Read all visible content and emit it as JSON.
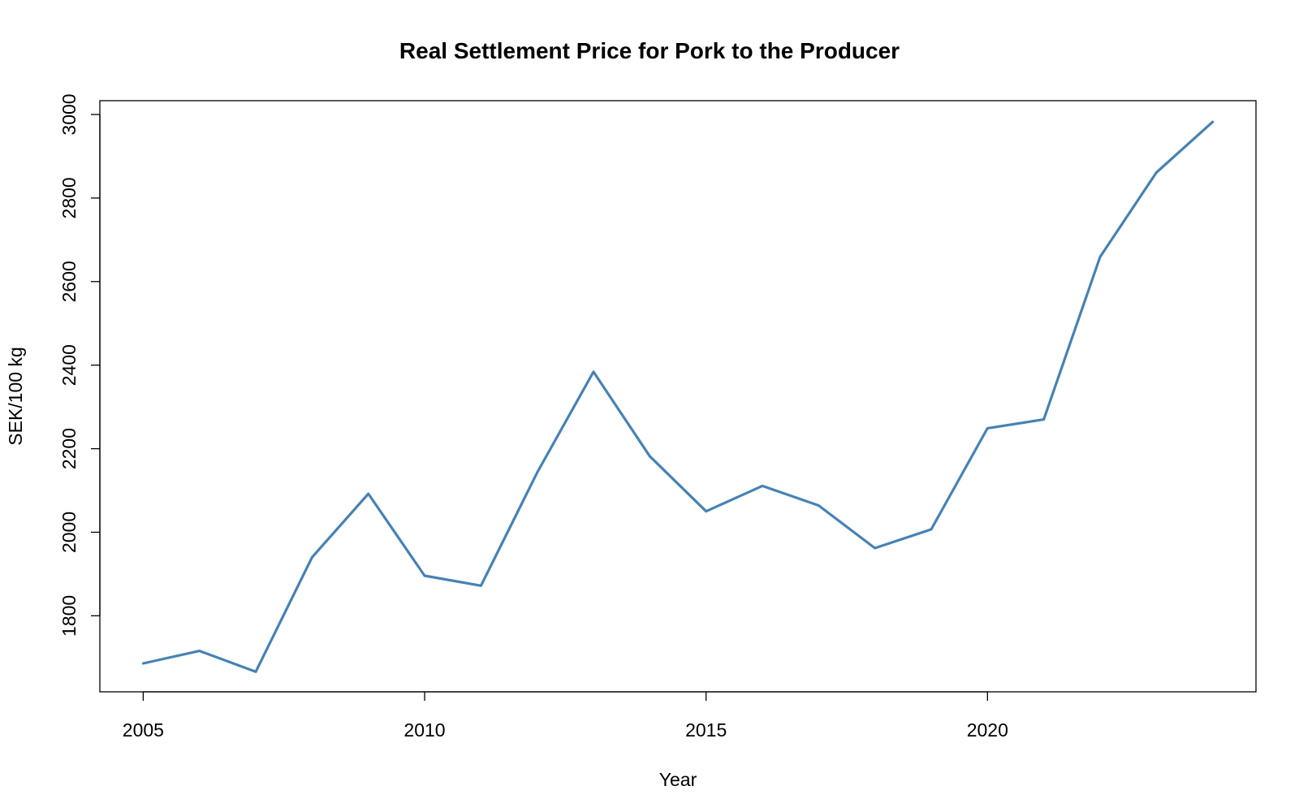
{
  "chart_data": {
    "type": "line",
    "title": "Real Settlement Price for Pork to the Producer",
    "xlabel": "Year",
    "ylabel": "SEK/100 kg",
    "xlim": [
      2004.23,
      2024.77
    ],
    "ylim": [
      1618,
      3033
    ],
    "x_ticks": [
      2005,
      2010,
      2015,
      2020
    ],
    "y_ticks": [
      1800,
      2000,
      2200,
      2400,
      2600,
      2800,
      3000
    ],
    "grid": false,
    "legend": "none",
    "series": [
      {
        "color": "#4682B4",
        "x": [
          2005,
          2006,
          2007,
          2008,
          2009,
          2010,
          2011,
          2012,
          2013,
          2014,
          2015,
          2016,
          2017,
          2018,
          2019,
          2020,
          2021,
          2022,
          2023,
          2024
        ],
        "values": [
          1686,
          1716,
          1666,
          1940,
          2092,
          1896,
          1872,
          2143,
          2384,
          2182,
          2050,
          2111,
          2064,
          1962,
          2007,
          2249,
          2270,
          2659,
          2861,
          2982
        ]
      }
    ]
  }
}
